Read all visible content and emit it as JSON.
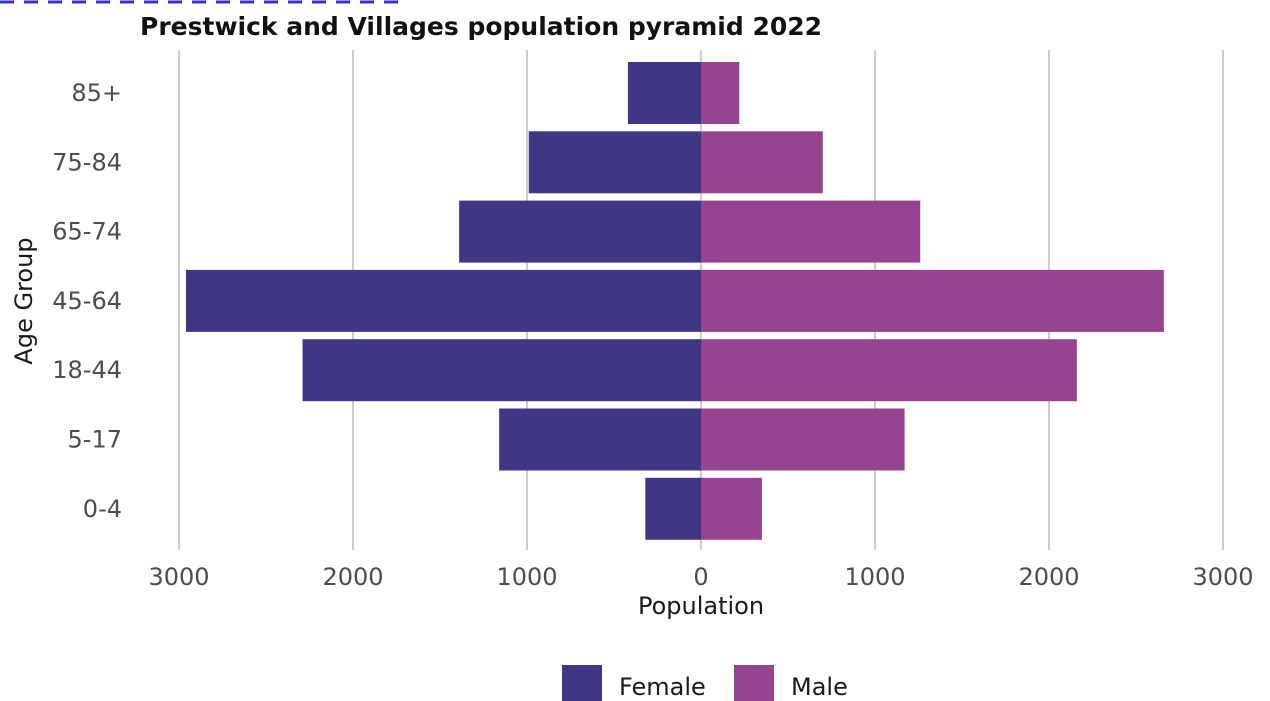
{
  "chart_data": {
    "type": "bar",
    "orientation": "horizontal",
    "title": "Prestwick and Villages population pyramid 2022",
    "xlabel": "Population",
    "ylabel": "Age Group",
    "categories": [
      "85+",
      "75-84",
      "65-74",
      "45-64",
      "18-44",
      "5-17",
      "0-4"
    ],
    "series": [
      {
        "name": "Female",
        "color": "#3f3786",
        "values": [
          420,
          990,
          1390,
          2960,
          2290,
          1160,
          320
        ]
      },
      {
        "name": "Male",
        "color": "#974490",
        "values": [
          220,
          700,
          1260,
          2660,
          2160,
          1170,
          350
        ]
      }
    ],
    "xticks": [
      {
        "value": -3000,
        "label": "3000"
      },
      {
        "value": -2000,
        "label": "2000"
      },
      {
        "value": -1000,
        "label": "1000"
      },
      {
        "value": 0,
        "label": "0"
      },
      {
        "value": 1000,
        "label": "1000"
      },
      {
        "value": 2000,
        "label": "2000"
      },
      {
        "value": 3000,
        "label": "3000"
      }
    ],
    "xlim": [
      -3000,
      3000
    ],
    "grid": "vertical",
    "legend_position": "bottom"
  }
}
